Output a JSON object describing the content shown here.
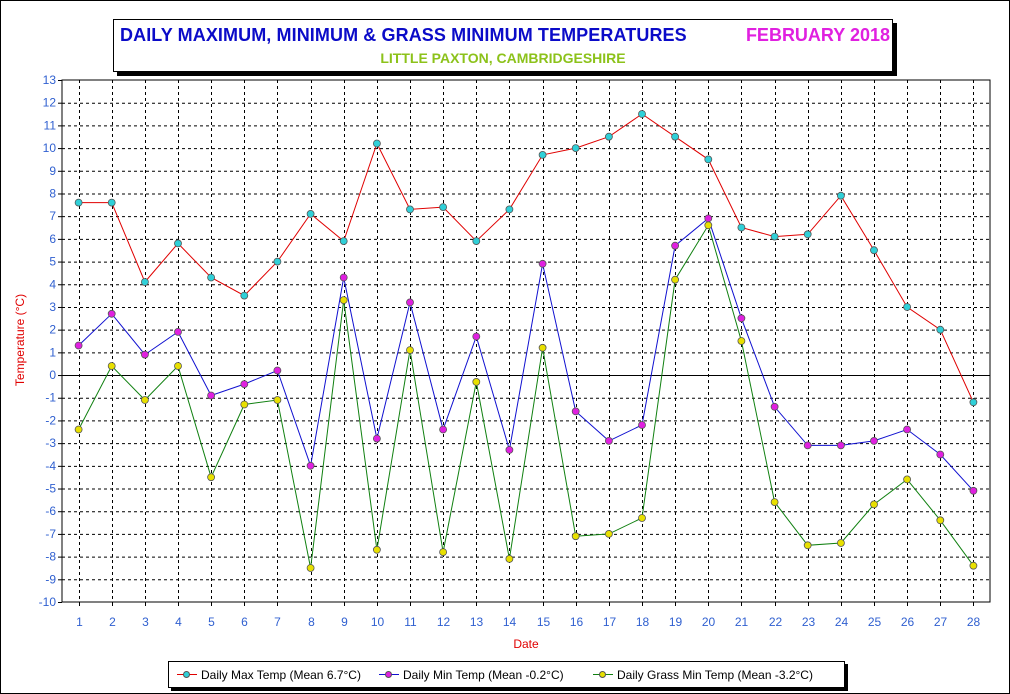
{
  "title": {
    "main": "DAILY MAXIMUM, MINIMUM & GRASS MINIMUM TEMPERATURES",
    "month": "FEBRUARY 2018",
    "subtitle": "LITTLE PAXTON, CAMBRIDGESHIRE"
  },
  "colors": {
    "title": "#0b0bc8",
    "month": "#e020e0",
    "subtitle": "#8cc21a",
    "axis_labels": "#e00000",
    "tick_labels": "#3060d0",
    "grid": "#000000"
  },
  "chart_data": {
    "type": "line",
    "xlabel": "Date",
    "ylabel": "Temperature (°C)",
    "ylim": [
      -10,
      13
    ],
    "grid": true,
    "legend_position": "bottom",
    "x": [
      1,
      2,
      3,
      4,
      5,
      6,
      7,
      8,
      9,
      10,
      11,
      12,
      13,
      14,
      15,
      16,
      17,
      18,
      19,
      20,
      21,
      22,
      23,
      24,
      25,
      26,
      27,
      28
    ],
    "series": [
      {
        "name": "Daily Max Temp (Mean 6.7°C)",
        "line_color": "#e00000",
        "marker_color": "#30d0d8",
        "values": [
          7.6,
          7.6,
          4.1,
          5.8,
          4.3,
          3.5,
          5.0,
          7.1,
          5.9,
          10.2,
          7.3,
          7.4,
          5.9,
          7.3,
          9.7,
          10.0,
          10.5,
          11.5,
          10.5,
          9.5,
          6.5,
          6.1,
          6.2,
          7.9,
          5.5,
          3.0,
          2.0,
          -1.2
        ]
      },
      {
        "name": "Daily Min Temp (Mean -0.2°C)",
        "line_color": "#1010d0",
        "marker_color": "#e020e0",
        "values": [
          1.3,
          2.7,
          0.9,
          1.9,
          -0.9,
          -0.4,
          0.2,
          -4.0,
          4.3,
          -2.8,
          3.2,
          -2.4,
          1.7,
          -3.3,
          4.9,
          -1.6,
          -2.9,
          -2.2,
          5.7,
          6.9,
          2.5,
          -1.4,
          -3.1,
          -3.1,
          -2.9,
          -2.4,
          -3.5,
          -5.1
        ]
      },
      {
        "name": "Daily Grass Min Temp (Mean -3.2°C)",
        "line_color": "#108010",
        "marker_color": "#e8e000",
        "values": [
          -2.4,
          0.4,
          -1.1,
          0.4,
          -4.5,
          -1.3,
          -1.1,
          -8.5,
          3.3,
          -7.7,
          1.1,
          -7.8,
          -0.3,
          -8.1,
          1.2,
          -7.1,
          -7.0,
          -6.3,
          4.2,
          6.6,
          1.5,
          -5.6,
          -7.5,
          -7.4,
          -5.7,
          -4.6,
          -6.4,
          -8.4
        ]
      }
    ]
  }
}
